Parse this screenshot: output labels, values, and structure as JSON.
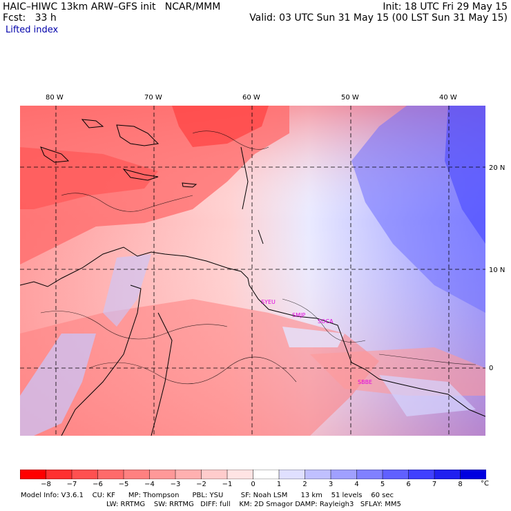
{
  "header": {
    "title_left": "HAIC–HIWC 13km ARW–GFS init   NCAR/MMM",
    "fcst": "Fcst:   33 h",
    "init": "Init: 18 UTC Fri 29 May 15",
    "valid": "Valid: 03 UTC Sun 31 May 15 (00 LST Sun 31 May 15)",
    "field": "Lifted index"
  },
  "axes": {
    "lon_labels": [
      "80 W",
      "70 W",
      "60 W",
      "50 W",
      "40 W"
    ],
    "lat_labels": [
      "20 N",
      "10 N",
      "0"
    ]
  },
  "stations": [
    "SYEU",
    "SMJP",
    "SOCA",
    "SBBE"
  ],
  "colorbar": {
    "labels": [
      "−8",
      "−7",
      "−6",
      "−5",
      "−4",
      "−3",
      "−2",
      "−1",
      "0",
      "1",
      "2",
      "3",
      "4",
      "5",
      "6",
      "7",
      "8"
    ],
    "unit": "°C",
    "colors": [
      "#ff0000",
      "#ff3030",
      "#ff5050",
      "#ff6a6a",
      "#ff8080",
      "#ff9898",
      "#ffb0b0",
      "#ffcccc",
      "#ffe4e4",
      "#ffffff",
      "#e0e0ff",
      "#c0c0ff",
      "#a0a0ff",
      "#8080ff",
      "#6060ff",
      "#4040ff",
      "#2020f0",
      "#0000e0"
    ]
  },
  "footer": {
    "line1": "Model Info: V3.6.1    CU: KF      MP: Thompson      PBL: YSU        SF: Noah LSM      13 km    51 levels    60 sec",
    "line2": "LW: RRTMG    SW: RRTMG   DIFF: full    KM: 2D Smagor DAMP: Rayleigh3   SFLAY: MM5"
  }
}
